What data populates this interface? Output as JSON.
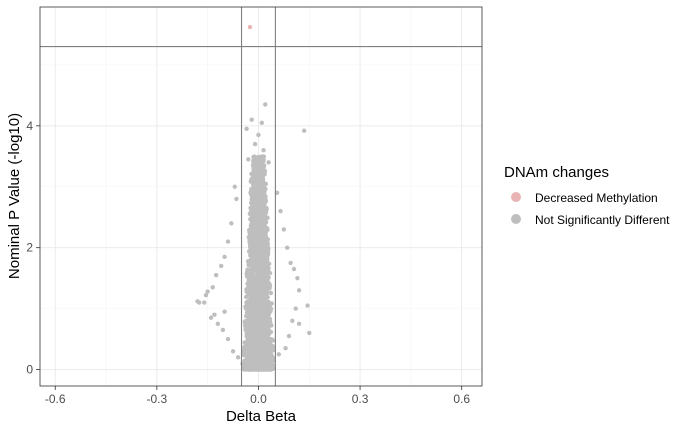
{
  "chart_data": {
    "type": "scatter",
    "title": "",
    "xlabel": "Delta Beta",
    "ylabel": "Nominal P Value (-log10)",
    "xlim": [
      -0.645,
      0.66
    ],
    "ylim": [
      -0.27,
      5.95
    ],
    "x_ticks": [
      -0.6,
      -0.3,
      0.0,
      0.3,
      0.6
    ],
    "x_tick_labels": [
      "-0.6",
      "-0.3",
      "0.0",
      "0.3",
      "0.6"
    ],
    "y_ticks": [
      0,
      2,
      4
    ],
    "y_tick_labels": [
      "0",
      "2",
      "4"
    ],
    "grid": true,
    "theme": "bw",
    "reference_lines": {
      "vertical": [
        -0.05,
        0.05
      ],
      "horizontal": [
        5.3
      ]
    },
    "legend": {
      "title": "DNAm changes",
      "placement": "right",
      "entries": [
        {
          "label": "Decreased Methylation",
          "color": "#e8b4b4"
        },
        {
          "label": "Not Significantly Different",
          "color": "#bebebe"
        }
      ]
    },
    "series": [
      {
        "name": "Decreased Methylation",
        "color": "#e8b4b4",
        "points": [
          [
            -0.025,
            5.62
          ]
        ]
      },
      {
        "name": "Not Significantly Different",
        "color": "#bebebe",
        "points": [
          [
            0.02,
            4.35
          ],
          [
            0.135,
            3.92
          ],
          [
            -0.02,
            4.1
          ],
          [
            0.01,
            4.05
          ],
          [
            -0.035,
            3.95
          ],
          [
            0.0,
            3.85
          ],
          [
            -0.01,
            3.7
          ],
          [
            0.015,
            3.6
          ],
          [
            -0.03,
            3.45
          ],
          [
            0.03,
            3.4
          ],
          [
            -0.07,
            3.0
          ],
          [
            -0.065,
            2.8
          ],
          [
            0.055,
            2.9
          ],
          [
            0.065,
            2.6
          ],
          [
            -0.08,
            2.4
          ],
          [
            0.075,
            2.3
          ],
          [
            -0.09,
            2.1
          ],
          [
            0.085,
            2.0
          ],
          [
            -0.1,
            1.85
          ],
          [
            0.095,
            1.75
          ],
          [
            -0.11,
            1.7
          ],
          [
            0.105,
            1.65
          ],
          [
            -0.125,
            1.55
          ],
          [
            0.115,
            1.5
          ],
          [
            -0.135,
            1.35
          ],
          [
            0.12,
            1.3
          ],
          [
            -0.15,
            1.28
          ],
          [
            -0.155,
            1.22
          ],
          [
            -0.16,
            1.1
          ],
          [
            -0.175,
            1.1
          ],
          [
            -0.18,
            1.12
          ],
          [
            0.145,
            1.05
          ],
          [
            0.15,
            0.6
          ],
          [
            0.12,
            0.75
          ],
          [
            -0.14,
            0.85
          ],
          [
            -0.13,
            0.9
          ],
          [
            -0.12,
            0.75
          ],
          [
            0.1,
            0.8
          ],
          [
            -0.09,
            0.5
          ],
          [
            0.09,
            0.55
          ],
          [
            -0.1,
            0.95
          ],
          [
            0.11,
            1.0
          ],
          [
            -0.105,
            0.65
          ],
          [
            0.08,
            0.35
          ],
          [
            -0.075,
            0.3
          ],
          [
            -0.06,
            0.2
          ],
          [
            0.06,
            0.25
          ],
          [
            -0.045,
            0.05
          ],
          [
            0.04,
            0.08
          ],
          [
            0.0,
            0.0
          ]
        ],
        "dense_core": {
          "x_center": 0.0,
          "x_halfwidth_at_base": 0.05,
          "x_halfwidth_at_top": 0.02,
          "y_range": [
            0.0,
            3.5
          ]
        }
      }
    ]
  }
}
